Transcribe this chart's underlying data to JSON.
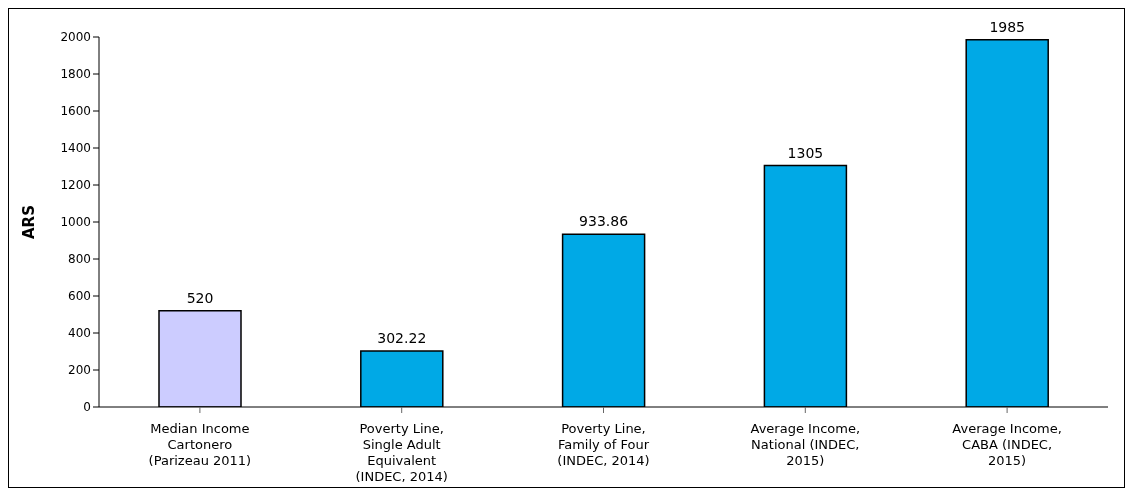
{
  "chart_data": {
    "type": "bar",
    "ylabel": "ARS",
    "categories": [
      "Median Income Cartonero (Parizeau 2011)",
      "Poverty Line, Single Adult Equivalent (INDEC, 2014)",
      "Poverty Line, Family of Four (INDEC, 2014)",
      "Average Income, National (INDEC, 2015)",
      "Average Income, CABA (INDEC, 2015)"
    ],
    "values": [
      520,
      302.22,
      933.86,
      1305,
      1985
    ],
    "colors": [
      "#ccccff",
      "#00a9e6",
      "#00a9e6",
      "#00a9e6",
      "#00a9e6"
    ],
    "ylim": [
      0,
      2000
    ],
    "yticks": [
      0,
      200,
      400,
      600,
      800,
      1000,
      1200,
      1400,
      1600,
      1800,
      2000
    ],
    "data_labels": true,
    "grid": false
  }
}
